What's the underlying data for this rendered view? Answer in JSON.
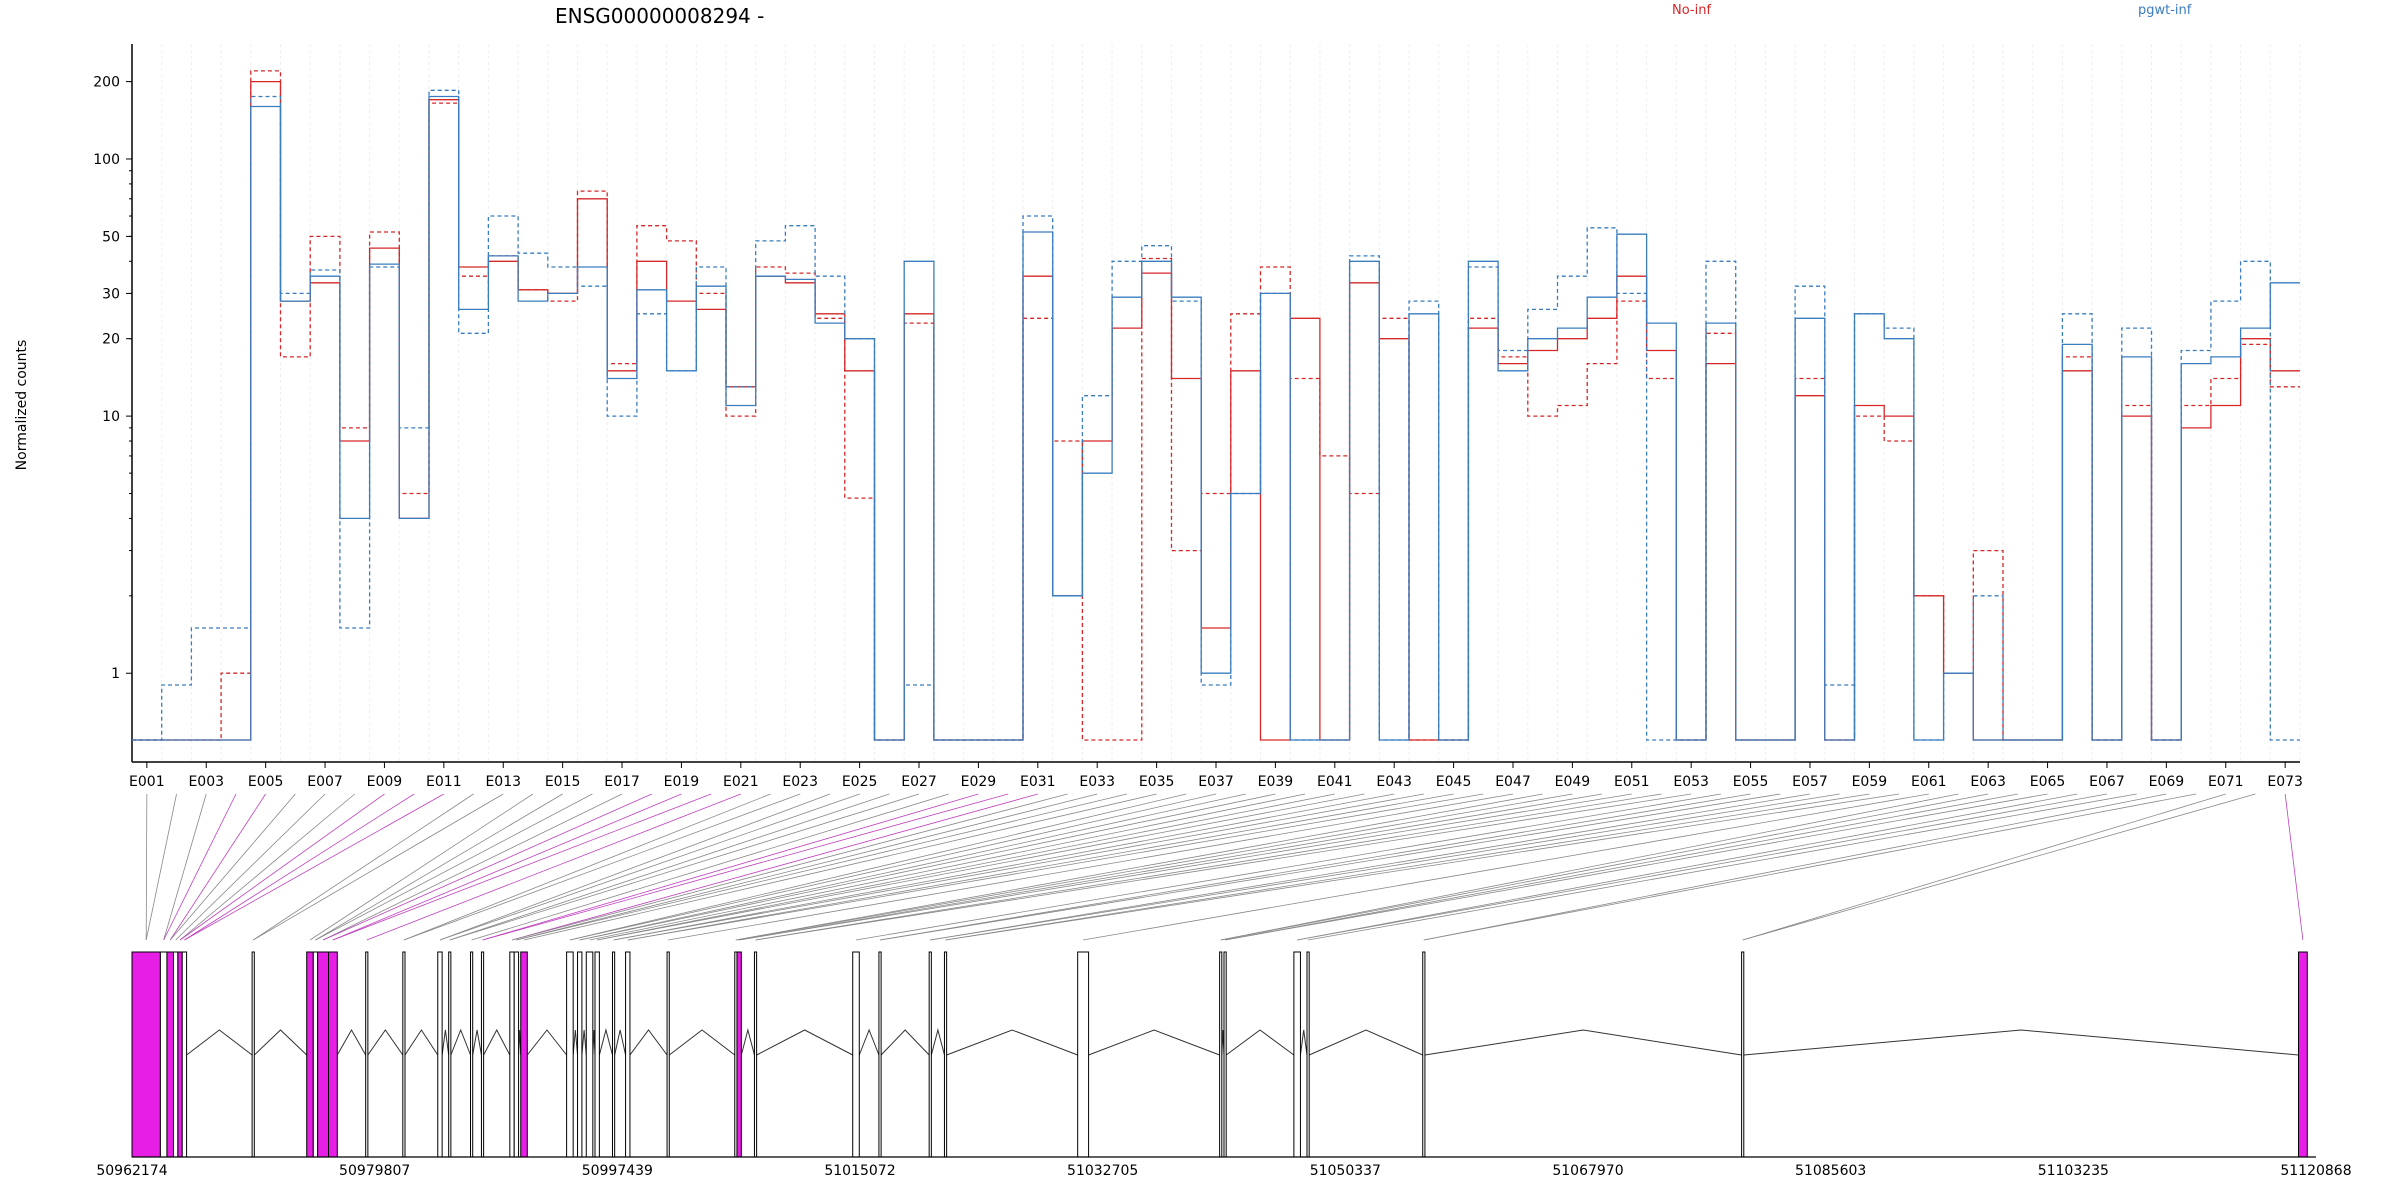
{
  "chart_data": {
    "type": "line",
    "title": "ENSG00000008294 -",
    "ylabel": "Normalized counts",
    "yscale": "log",
    "ylim": [
      0.55,
      280
    ],
    "ytick_values": [
      1,
      10,
      20,
      30,
      50,
      100,
      200
    ],
    "ytick_labels": [
      "1",
      "10",
      "20",
      "30",
      "50",
      "100",
      "200"
    ],
    "xlabels": [
      "E001",
      "E003",
      "E005",
      "E007",
      "E009",
      "E011",
      "E013",
      "E015",
      "E017",
      "E019",
      "E021",
      "E023",
      "E025",
      "E027",
      "E029",
      "E031",
      "E033",
      "E035",
      "E037",
      "E039",
      "E041",
      "E043",
      "E045",
      "E047",
      "E049",
      "E051",
      "E053",
      "E055",
      "E057",
      "E059",
      "E061",
      "E063",
      "E065",
      "E067",
      "E069",
      "E071",
      "E073"
    ],
    "colors": {
      "No-inf": "#d62728",
      "pgwt-inf": "#3a7dbf",
      "exon_sig": "#e61ee6",
      "exon_normal": "#ffffff",
      "connector": "#888888"
    },
    "legend": [
      {
        "label": "No-inf",
        "color": "#d62728"
      },
      {
        "label": "pgwt-inf",
        "color": "#3a7dbf"
      }
    ],
    "series": [
      {
        "name": "No-inf",
        "dash": "solid",
        "values": [
          0.5,
          0.5,
          0.5,
          0.5,
          200,
          28,
          33,
          8,
          45,
          4,
          170,
          38,
          40,
          31,
          30,
          70,
          15,
          40,
          28,
          26,
          13,
          35,
          33,
          25,
          15,
          0.5,
          25,
          0.5,
          0.5,
          0.5,
          35,
          2,
          8,
          22,
          36,
          14,
          1.5,
          15,
          0.5,
          24,
          0.5,
          33,
          20,
          0.5,
          0.5,
          22,
          16,
          18,
          20,
          24,
          35,
          18,
          0.5,
          16,
          0.5,
          0.5,
          12,
          0.5,
          11,
          10,
          2,
          1,
          0.5,
          0.5,
          0.5,
          15,
          0.5,
          10,
          0.5,
          9,
          11,
          20,
          15
        ]
      },
      {
        "name": "No-inf",
        "dash": "dashed",
        "values": [
          0.5,
          0.5,
          0.5,
          1,
          220,
          17,
          50,
          9,
          52,
          5,
          165,
          35,
          42,
          31,
          28,
          75,
          16,
          55,
          48,
          30,
          10,
          38,
          36,
          24,
          4.8,
          0.5,
          23,
          0.5,
          0.5,
          0.5,
          24,
          8,
          0.5,
          0.5,
          41,
          3,
          5,
          25,
          38,
          14,
          7,
          5,
          24,
          0.5,
          0.5,
          24,
          17,
          10,
          11,
          16,
          28,
          14,
          0.5,
          21,
          0.5,
          0.5,
          14,
          0.5,
          10,
          8,
          2,
          1,
          3,
          0.5,
          0.5,
          17,
          0.5,
          11,
          0.5,
          11,
          14,
          19,
          13
        ]
      },
      {
        "name": "pgwt-inf",
        "dash": "solid",
        "values": [
          0.5,
          0.5,
          0.5,
          0.5,
          160,
          28,
          35,
          4,
          39,
          4,
          175,
          26,
          42,
          28,
          30,
          38,
          14,
          31,
          15,
          32,
          11,
          35,
          34,
          23,
          20,
          0.5,
          40,
          0.5,
          0.5,
          0.5,
          52,
          2,
          6,
          29,
          40,
          29,
          1,
          5,
          30,
          0.5,
          0.5,
          40,
          0.5,
          25,
          0.5,
          40,
          15,
          20,
          22,
          29,
          51,
          23,
          0.5,
          23,
          0.5,
          0.5,
          24,
          0.5,
          25,
          20,
          0.5,
          1,
          0.5,
          0.5,
          0.5,
          19,
          0.5,
          17,
          0.5,
          16,
          17,
          22,
          33
        ]
      },
      {
        "name": "pgwt-inf",
        "dash": "dashed",
        "values": [
          0.5,
          0.9,
          1.5,
          1.5,
          175,
          30,
          37,
          1.5,
          38,
          9,
          185,
          21,
          60,
          43,
          38,
          32,
          10,
          25,
          15,
          38,
          13,
          48,
          55,
          35,
          20,
          0.5,
          0.9,
          0.5,
          0.5,
          0.5,
          60,
          2,
          12,
          40,
          46,
          28,
          0.9,
          5,
          30,
          0.5,
          0.5,
          42,
          0.5,
          28,
          0.5,
          38,
          18,
          26,
          35,
          54,
          30,
          0.5,
          0.5,
          40,
          0.5,
          0.5,
          32,
          0.9,
          25,
          22,
          0.5,
          1,
          2,
          0.5,
          0.5,
          25,
          0.5,
          22,
          0.5,
          18,
          28,
          40,
          0.5
        ]
      }
    ],
    "genomic_coordinate_labels": [
      "50962174",
      "50979807",
      "50997439",
      "51015072",
      "51032705",
      "51050337",
      "51067970",
      "51085603",
      "51103235",
      "51120868"
    ]
  }
}
